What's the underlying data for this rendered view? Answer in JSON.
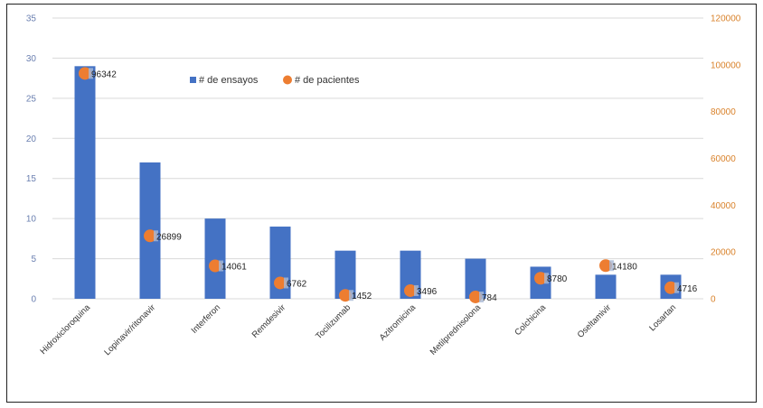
{
  "chart_data": {
    "type": "bar",
    "categories": [
      "Hidroxicloroquina",
      "Lopinavir/ritonavir",
      "Interferon",
      "Remdesivir",
      "Tocilizumab",
      "Azitromicina",
      "Metilprednisolona",
      "Colchicina",
      "Oseltamivir",
      "Losartan"
    ],
    "series": [
      {
        "name": "# de ensayos",
        "type": "bar",
        "axis": "left",
        "color": "#4472c4",
        "values": [
          29,
          17,
          10,
          9,
          6,
          6,
          5,
          4,
          3,
          3
        ]
      },
      {
        "name": "# de pacientes",
        "type": "scatter",
        "axis": "right",
        "color": "#ed7d31",
        "values": [
          96342,
          26899,
          14061,
          6762,
          1452,
          3496,
          784,
          8780,
          14180,
          4716
        ]
      }
    ],
    "data_labels": [
      "96342",
      "26899",
      "14061",
      "6762",
      "1452",
      "3496",
      "784",
      "8780",
      "14180",
      "4716"
    ],
    "left_axis": {
      "ylim": [
        0,
        35
      ],
      "ticks": [
        0,
        5,
        10,
        15,
        20,
        25,
        30,
        35
      ],
      "tick_labels": [
        "0",
        "5",
        "10",
        "15",
        "20",
        "25",
        "30",
        "35"
      ]
    },
    "right_axis": {
      "ylim": [
        0,
        120000
      ],
      "ticks": [
        0,
        20000,
        40000,
        60000,
        80000,
        100000,
        120000
      ],
      "tick_labels": [
        "0",
        "20000",
        "40000",
        "60000",
        "80000",
        "100000",
        "120000"
      ]
    },
    "grid": true,
    "legend": {
      "position": "top-center",
      "entries": [
        "# de ensayos",
        "# de pacientes"
      ]
    }
  }
}
